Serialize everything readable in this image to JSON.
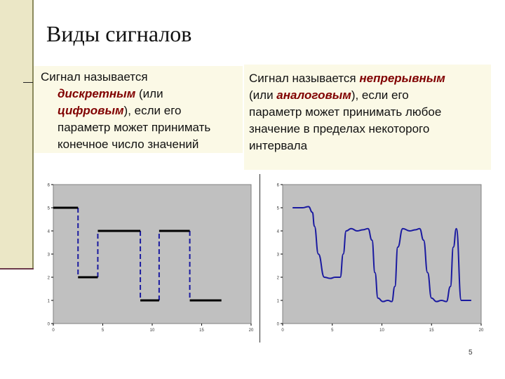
{
  "slide": {
    "title": "Виды сигналов",
    "page_number": "5"
  },
  "left_box": {
    "lines": [
      [
        {
          "t": "Сигнал называется",
          "hl": false
        }
      ],
      [
        {
          "t": "дискретным",
          "hl": true
        },
        {
          "t": " (или",
          "hl": false
        }
      ],
      [
        {
          "t": "цифровым",
          "hl": true
        },
        {
          "t": "), если его",
          "hl": false
        }
      ],
      [
        {
          "t": "параметр может принимать",
          "hl": false
        }
      ],
      [
        {
          "t": "конечное число значений",
          "hl": false
        }
      ]
    ]
  },
  "right_box": {
    "lines": [
      [
        {
          "t": "Сигнал называется ",
          "hl": false
        },
        {
          "t": "непрерывным",
          "hl": true
        }
      ],
      [
        {
          "t": "(или ",
          "hl": false
        },
        {
          "t": "аналоговым",
          "hl": true
        },
        {
          "t": "), если его",
          "hl": false
        }
      ],
      [
        {
          "t": "параметр может принимать любое",
          "hl": false
        }
      ],
      [
        {
          "t": "значение в пределах некоторого",
          "hl": false
        }
      ],
      [
        {
          "t": "интервала",
          "hl": false
        }
      ]
    ]
  },
  "chart_data": [
    {
      "type": "line",
      "style": "step",
      "xlim": [
        0,
        20
      ],
      "ylim": [
        0,
        6
      ],
      "x_ticks": [
        "0",
        "5",
        "10",
        "15",
        "20"
      ],
      "y_ticks": [
        "0",
        "1",
        "2",
        "3",
        "4",
        "5",
        "6"
      ],
      "grid": false,
      "plot_background": "#c0c0c0",
      "line_color": "#000000",
      "vertical_color": "#1a1aa0",
      "series": [
        {
          "segments": [
            {
              "x0": 0,
              "x1": 2.5,
              "y": 5
            },
            {
              "x0": 2.5,
              "x1": 4.5,
              "y": 2
            },
            {
              "x0": 4.5,
              "x1": 8.8,
              "y": 4
            },
            {
              "x0": 8.8,
              "x1": 10.7,
              "y": 1
            },
            {
              "x0": 10.7,
              "x1": 13.8,
              "y": 4
            },
            {
              "x0": 13.8,
              "x1": 17,
              "y": 1
            }
          ]
        }
      ]
    },
    {
      "type": "line",
      "xlim": [
        0,
        20
      ],
      "ylim": [
        0,
        6
      ],
      "x_ticks": [
        "0",
        "5",
        "10",
        "15",
        "20"
      ],
      "y_ticks": [
        "0",
        "1",
        "2",
        "3",
        "4",
        "5",
        "6"
      ],
      "grid": false,
      "plot_background": "#c0c0c0",
      "line_color": "#1a1aa0",
      "series": [
        {
          "x": [
            1,
            2,
            2.6,
            3,
            3.2,
            3.6,
            4.2,
            4.8,
            5.3,
            5.8,
            6.1,
            6.4,
            6.9,
            7.5,
            8.1,
            8.6,
            9.0,
            9.3,
            9.6,
            10.1,
            10.6,
            11.0,
            11.3,
            11.6,
            12.1,
            12.8,
            13.4,
            13.8,
            14.2,
            14.6,
            15.0,
            15.5,
            16.0,
            16.5,
            16.9,
            17.2,
            17.5,
            18.0,
            19.0
          ],
          "y": [
            5,
            5,
            5.05,
            4.8,
            4.2,
            3.0,
            2.0,
            1.95,
            2.0,
            2.0,
            3.0,
            4.0,
            4.1,
            4.0,
            4.05,
            4.1,
            3.6,
            2.2,
            1.1,
            0.95,
            1.0,
            0.95,
            1.6,
            3.3,
            4.1,
            4.0,
            4.05,
            4.1,
            3.6,
            2.2,
            1.1,
            0.95,
            1.0,
            0.95,
            1.6,
            3.3,
            4.1,
            1.0,
            1.0
          ]
        }
      ]
    }
  ]
}
